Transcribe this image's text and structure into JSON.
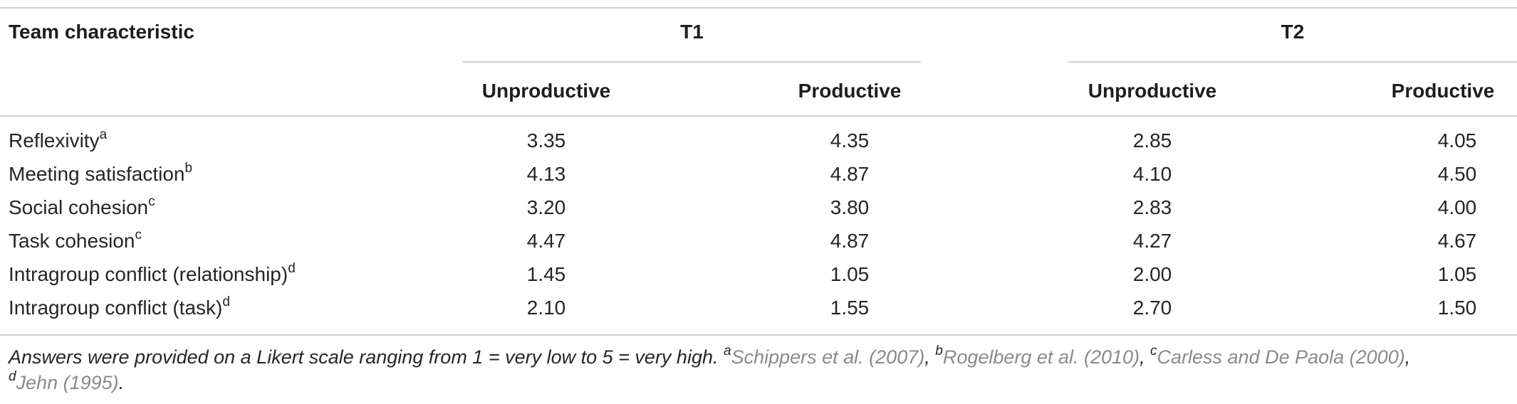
{
  "header": {
    "team_characteristic": "Team characteristic",
    "group_t1": "T1",
    "group_t2": "T2",
    "sub_unproductive": "Unproductive",
    "sub_productive": "Productive"
  },
  "rows": [
    {
      "label": "Reflexivity",
      "note": "a",
      "values": [
        "3.35",
        "4.35",
        "2.85",
        "4.05"
      ]
    },
    {
      "label": "Meeting satisfaction",
      "note": "b",
      "values": [
        "4.13",
        "4.87",
        "4.10",
        "4.50"
      ]
    },
    {
      "label": "Social cohesion",
      "note": "c",
      "values": [
        "3.20",
        "3.80",
        "2.83",
        "4.00"
      ]
    },
    {
      "label": "Task cohesion",
      "note": "c",
      "values": [
        "4.47",
        "4.87",
        "4.27",
        "4.67"
      ]
    },
    {
      "label": "Intragroup conflict (relationship)",
      "note": "d",
      "values": [
        "1.45",
        "1.05",
        "2.00",
        "1.05"
      ]
    },
    {
      "label": "Intragroup conflict (task)",
      "note": "d",
      "values": [
        "2.10",
        "1.55",
        "2.70",
        "1.50"
      ]
    }
  ],
  "footnote": {
    "text": "Answers were provided on a Likert scale ranging from 1 = very low to 5 = very high.",
    "refs": [
      {
        "mark": "a",
        "text": "Schippers et al. (2007)"
      },
      {
        "mark": "b",
        "text": "Rogelberg et al. (2010)"
      },
      {
        "mark": "c",
        "text": "Carless and De Paola (2000)"
      },
      {
        "mark": "d",
        "text": "Jehn (1995)"
      }
    ]
  }
}
